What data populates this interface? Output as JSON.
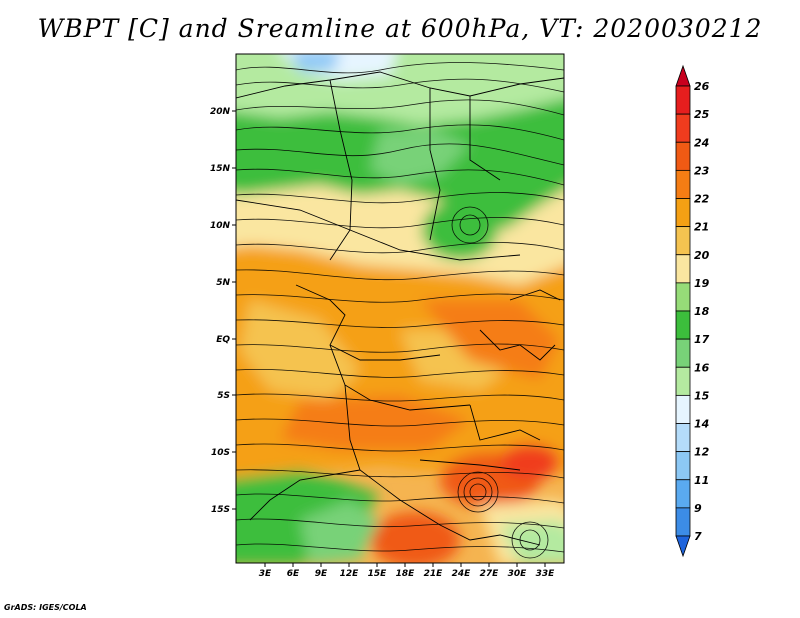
{
  "title": "WBPT [C] and Sreamline at 600hPa, VT: 2020030212",
  "footer": "GrADS: IGES/COLA",
  "map": {
    "lat_labels": [
      "20N",
      "15N",
      "10N",
      "5N",
      "EQ",
      "5S",
      "10S",
      "15S"
    ],
    "lon_labels": [
      "3E",
      "6E",
      "9E",
      "12E",
      "15E",
      "18E",
      "21E",
      "24E",
      "27E",
      "30E",
      "33E"
    ]
  },
  "colorbar": {
    "levels": [
      "26",
      "25",
      "24",
      "23",
      "22",
      "21",
      "20",
      "19",
      "18",
      "17",
      "16",
      "15",
      "14",
      "12",
      "11",
      "9",
      "7"
    ],
    "colors": [
      "#c8001e",
      "#e61e1e",
      "#f03c1e",
      "#f05a14",
      "#f57d14",
      "#f5a014",
      "#f5c350",
      "#fae6a0",
      "#96dc78",
      "#3cbe3c",
      "#78d278",
      "#b4eaa0",
      "#e6f5ff",
      "#b4dcfa",
      "#8cc8f5",
      "#5aaaf0",
      "#3c8ce6",
      "#1e64dc"
    ]
  }
}
